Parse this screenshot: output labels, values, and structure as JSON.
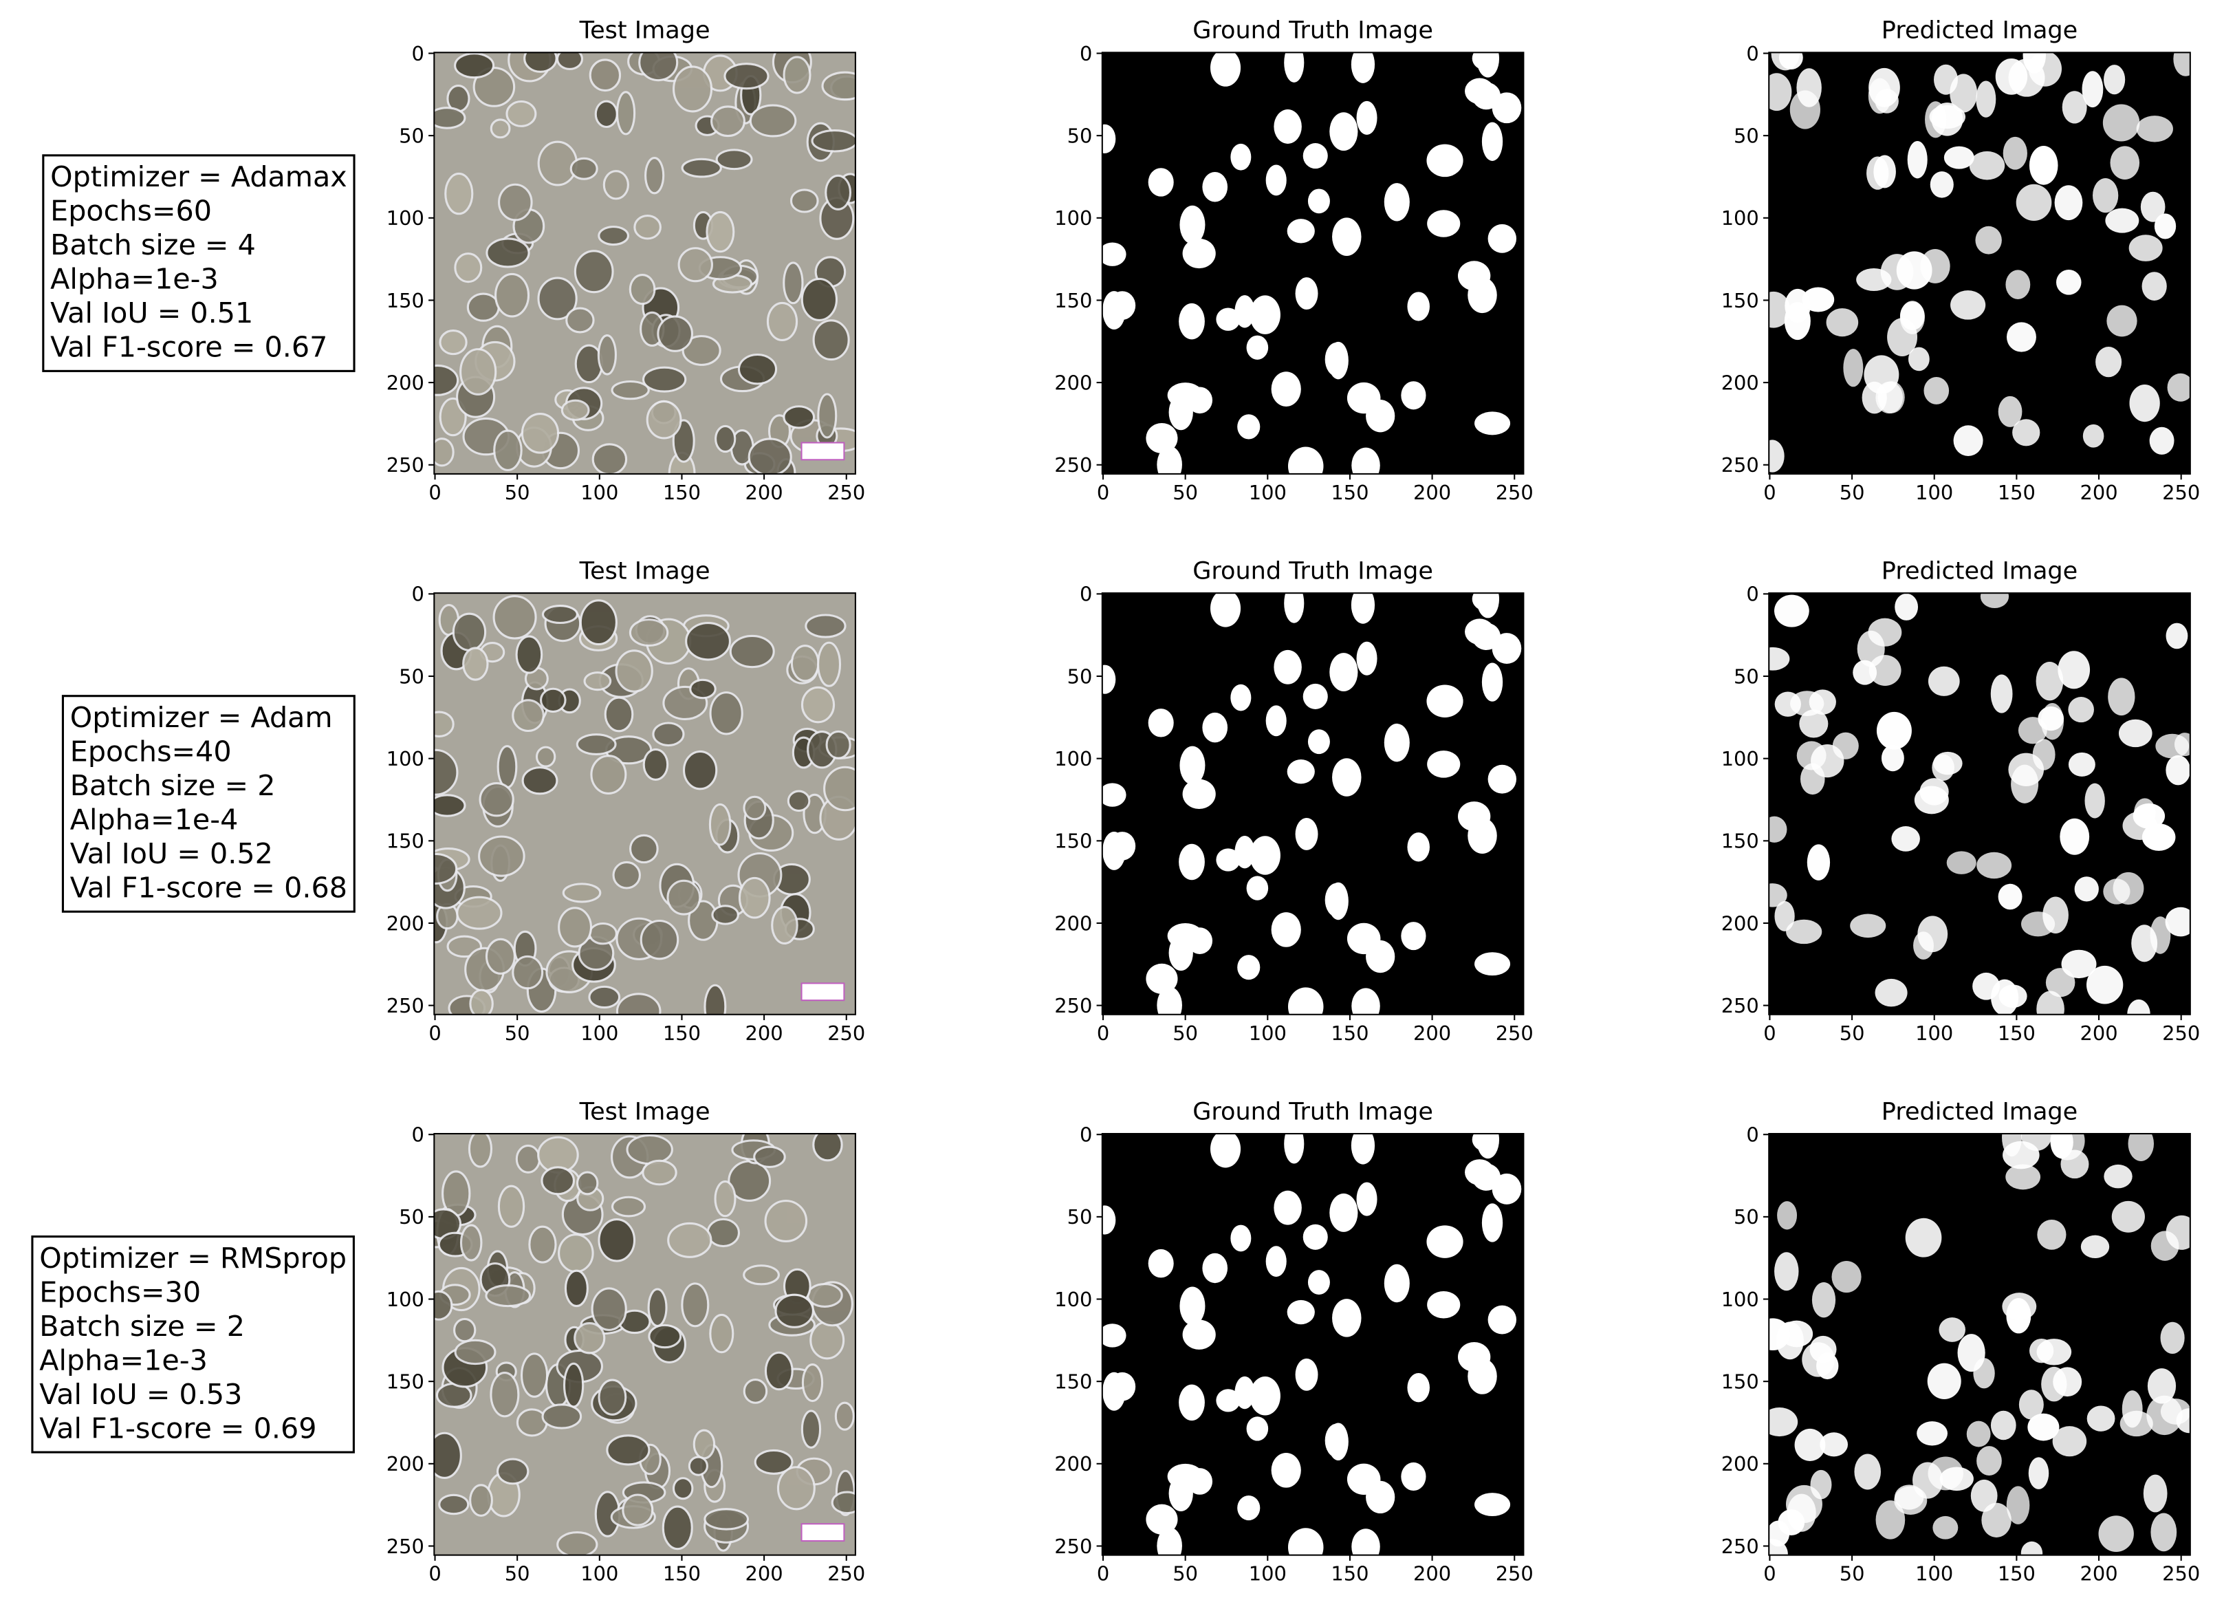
{
  "axis": {
    "xlim": [
      -0.5,
      255.5
    ],
    "ylim": [
      255.5,
      -0.5
    ],
    "xticks": [
      0,
      50,
      100,
      150,
      200,
      250
    ],
    "yticks": [
      0,
      50,
      100,
      150,
      200,
      250
    ]
  },
  "rows": [
    {
      "settings": [
        "Optimizer = Adamax",
        "Epochs=60",
        "Batch size = 4",
        "Alpha=1e-3",
        "Val IoU = 0.51",
        "Val F1-score = 0.67"
      ],
      "panels": [
        {
          "title": "Test Image"
        },
        {
          "title": "Ground Truth Image"
        },
        {
          "title": "Predicted Image"
        }
      ]
    },
    {
      "settings": [
        "Optimizer = Adam",
        "Epochs=40",
        "Batch size = 2",
        "Alpha=1e-4",
        "Val IoU = 0.52",
        "Val F1-score = 0.68"
      ],
      "panels": [
        {
          "title": "Test Image"
        },
        {
          "title": "Ground Truth Image"
        },
        {
          "title": "Predicted Image"
        }
      ]
    },
    {
      "settings": [
        "Optimizer = RMSprop",
        "Epochs=30",
        "Batch size = 2",
        "Alpha=1e-3",
        "Val IoU = 0.53",
        "Val F1-score = 0.69"
      ],
      "panels": [
        {
          "title": "Test Image"
        },
        {
          "title": "Ground Truth Image"
        },
        {
          "title": "Predicted Image"
        }
      ]
    }
  ]
}
